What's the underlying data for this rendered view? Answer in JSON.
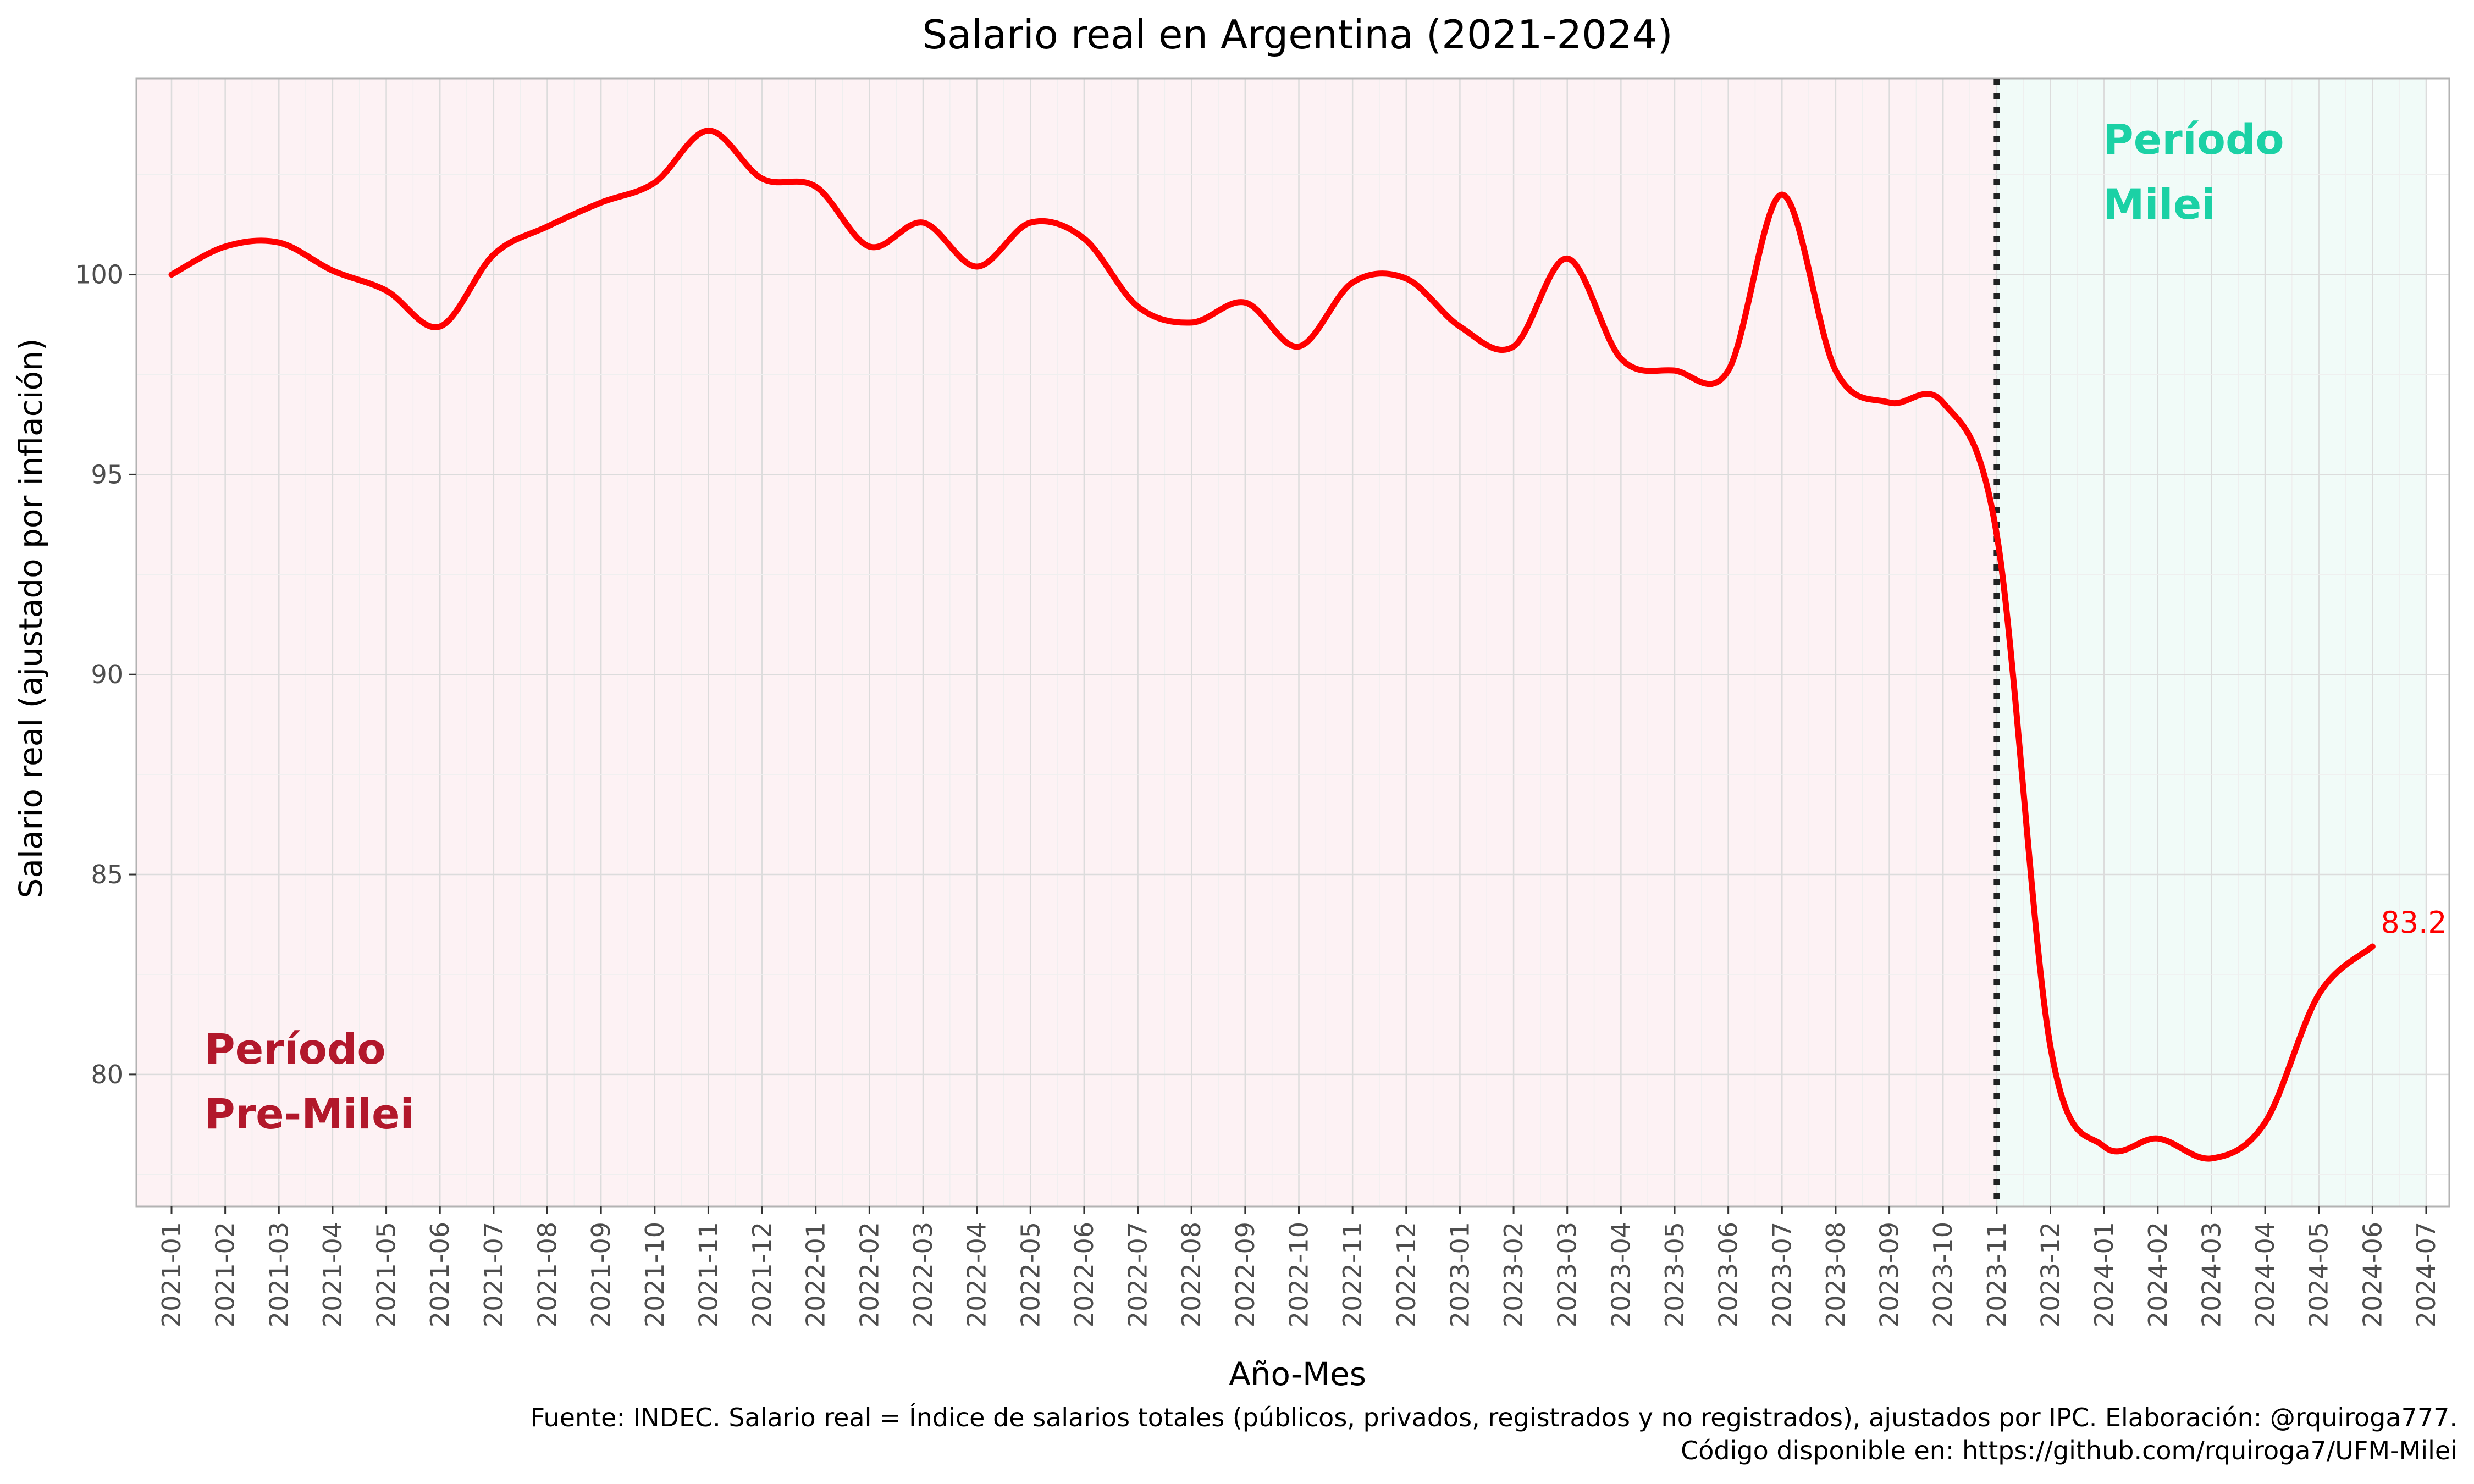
{
  "chart_data": {
    "type": "line",
    "title": "Salario real en Argentina (2021-2024)",
    "xlabel": "Año-Mes",
    "ylabel": "Salario real (ajustado por inflación)",
    "ylim": [
      76.7,
      104.9
    ],
    "yticks": [
      80,
      85,
      90,
      95,
      100
    ],
    "categories": [
      "2021-01",
      "2021-02",
      "2021-03",
      "2021-04",
      "2021-05",
      "2021-06",
      "2021-07",
      "2021-08",
      "2021-09",
      "2021-10",
      "2021-11",
      "2021-12",
      "2022-01",
      "2022-02",
      "2022-03",
      "2022-04",
      "2022-05",
      "2022-06",
      "2022-07",
      "2022-08",
      "2022-09",
      "2022-10",
      "2022-11",
      "2022-12",
      "2023-01",
      "2023-02",
      "2023-03",
      "2023-04",
      "2023-05",
      "2023-06",
      "2023-07",
      "2023-08",
      "2023-09",
      "2023-10",
      "2023-11",
      "2023-12",
      "2024-01",
      "2024-02",
      "2024-03",
      "2024-04",
      "2024-05",
      "2024-06",
      "2024-07"
    ],
    "series": [
      {
        "color": "#ff0000",
        "x": [
          "2021-01",
          "2021-02",
          "2021-03",
          "2021-04",
          "2021-05",
          "2021-06",
          "2021-07",
          "2021-08",
          "2021-09",
          "2021-10",
          "2021-11",
          "2021-12",
          "2022-01",
          "2022-02",
          "2022-03",
          "2022-04",
          "2022-05",
          "2022-06",
          "2022-07",
          "2022-08",
          "2022-09",
          "2022-10",
          "2022-11",
          "2022-12",
          "2023-01",
          "2023-02",
          "2023-03",
          "2023-04",
          "2023-05",
          "2023-06",
          "2023-07",
          "2023-08",
          "2023-09",
          "2023-10",
          "2023-11",
          "2023-12",
          "2024-01",
          "2024-02",
          "2024-03",
          "2024-04",
          "2024-05",
          "2024-06"
        ],
        "values": [
          100.0,
          100.7,
          100.8,
          100.1,
          99.6,
          98.7,
          100.5,
          101.2,
          101.8,
          102.3,
          103.6,
          102.4,
          102.2,
          100.7,
          101.3,
          100.2,
          101.3,
          100.9,
          99.2,
          98.8,
          99.3,
          98.2,
          99.8,
          99.9,
          98.7,
          98.2,
          100.4,
          97.9,
          97.6,
          97.6,
          102.0,
          97.6,
          96.8,
          96.8,
          93.5,
          80.7,
          78.2,
          78.4,
          77.9,
          78.8,
          82.0,
          83.2
        ]
      }
    ],
    "end_label": "83.2",
    "milei_start": "2023-11",
    "regions": [
      {
        "label": [
          "Período",
          "Pre-Milei"
        ],
        "color": "#b2182b",
        "fill": "#fdf2f4"
      },
      {
        "label": [
          "Período",
          "Milei"
        ],
        "color": "#1bd1a5",
        "fill": "#f1fbf8"
      }
    ],
    "caption": [
      "Fuente: INDEC. Salario real = Índice de salarios totales (públicos, privados, registrados y no registrados), ajustados por IPC. Elaboración: @rquiroga777.",
      "Código disponible en: https://github.com/rquiroga7/UFM-Milei"
    ],
    "grid": true
  }
}
